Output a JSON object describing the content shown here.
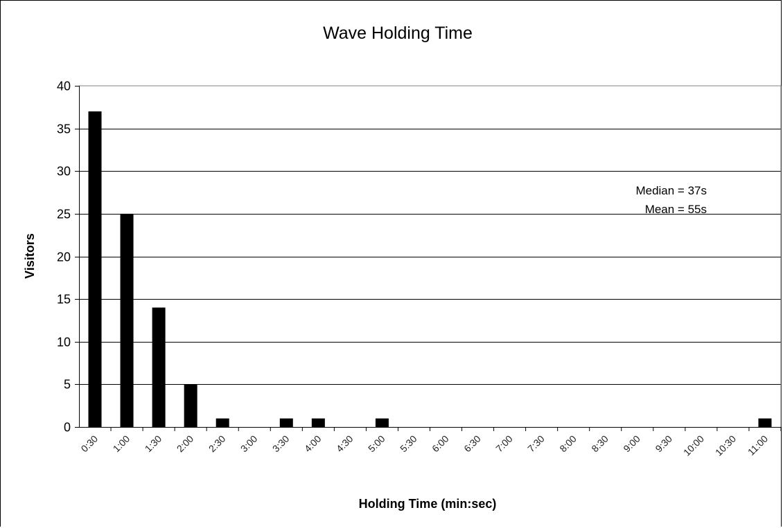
{
  "chart_data": {
    "type": "bar",
    "title": "Wave  Holding  Time",
    "xlabel": "Holding   Time   (min:sec)",
    "ylabel": "Visitors",
    "ylim": [
      0,
      40
    ],
    "yticks": [
      0,
      5,
      10,
      15,
      20,
      25,
      30,
      35,
      40
    ],
    "grid": true,
    "legend": "none",
    "bar_color": "#000000",
    "categories": [
      "0:30",
      "1:00",
      "1:30",
      "2:00",
      "2:30",
      "3:00",
      "3:30",
      "4:00",
      "4:30",
      "5:00",
      "5:30",
      "6:00",
      "6:30",
      "7:00",
      "7:30",
      "8:00",
      "8:30",
      "9:00",
      "9:30",
      "10:00",
      "10:30",
      "11:00"
    ],
    "values": [
      37,
      25,
      14,
      5,
      1,
      0,
      1,
      1,
      0,
      1,
      0,
      0,
      0,
      0,
      0,
      0,
      0,
      0,
      0,
      0,
      0,
      1
    ],
    "annotations": [
      "Median = 37s",
      "Mean = 55s"
    ]
  }
}
